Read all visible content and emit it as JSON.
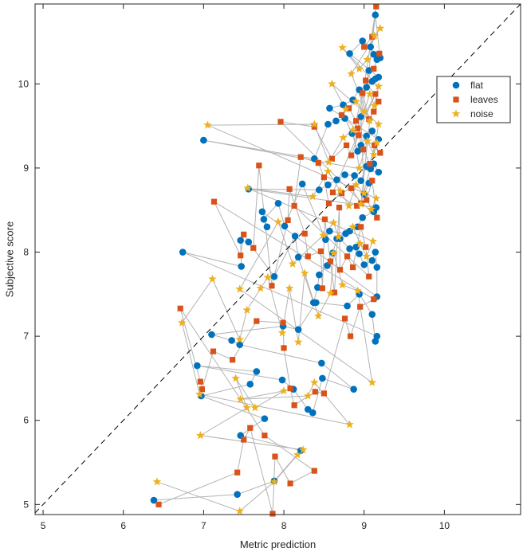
{
  "chart_data": {
    "type": "scatter",
    "title": "",
    "xlabel": "Metric prediction",
    "ylabel": "Subjective score",
    "xlim": [
      4.9,
      10.95
    ],
    "ylim": [
      4.88,
      10.95
    ],
    "xticks": [
      "5",
      "6",
      "7",
      "8",
      "9",
      "10"
    ],
    "yticks": [
      "5",
      "6",
      "7",
      "8",
      "9",
      "10"
    ],
    "grid": false,
    "legend_position": "top-right",
    "reference_line": "y = x (dashed)",
    "connector_color": "#b3b3b3",
    "series": [
      {
        "name": "flat",
        "marker": "circle",
        "color": "#0072bd",
        "points": [
          [
            6.38,
            5.05
          ],
          [
            7.42,
            5.12
          ],
          [
            7.88,
            5.28
          ],
          [
            8.21,
            5.64
          ],
          [
            7.46,
            5.82
          ],
          [
            7.76,
            6.02
          ],
          [
            6.97,
            6.29
          ],
          [
            7.58,
            6.43
          ],
          [
            7.66,
            6.58
          ],
          [
            6.92,
            6.65
          ],
          [
            7.98,
            6.48
          ],
          [
            8.12,
            6.37
          ],
          [
            8.3,
            6.13
          ],
          [
            8.36,
            6.09
          ],
          [
            8.48,
            6.5
          ],
          [
            8.87,
            6.37
          ],
          [
            8.47,
            6.68
          ],
          [
            7.45,
            6.9
          ],
          [
            7.35,
            6.95
          ],
          [
            7.1,
            7.02
          ],
          [
            7.99,
            7.12
          ],
          [
            8.18,
            7.08
          ],
          [
            8.4,
            7.4
          ],
          [
            8.79,
            7.36
          ],
          [
            8.94,
            7.5
          ],
          [
            9.1,
            7.26
          ],
          [
            9.14,
            6.94
          ],
          [
            9.16,
            7.0
          ],
          [
            6.74,
            8.0
          ],
          [
            7.47,
            7.83
          ],
          [
            7.46,
            8.14
          ],
          [
            7.56,
            8.12
          ],
          [
            7.88,
            7.71
          ],
          [
            8.14,
            8.19
          ],
          [
            8.18,
            7.94
          ],
          [
            8.37,
            7.4
          ],
          [
            8.42,
            7.58
          ],
          [
            8.44,
            7.73
          ],
          [
            8.54,
            7.84
          ],
          [
            8.61,
            7.99
          ],
          [
            8.66,
            8.16
          ],
          [
            8.7,
            8.16
          ],
          [
            8.82,
            8.04
          ],
          [
            8.9,
            8.06
          ],
          [
            8.94,
            7.98
          ],
          [
            9.0,
            7.85
          ],
          [
            9.1,
            7.9
          ],
          [
            9.14,
            8.0
          ],
          [
            9.16,
            7.82
          ],
          [
            9.16,
            7.47
          ],
          [
            7.73,
            8.48
          ],
          [
            7.79,
            8.3
          ],
          [
            7.75,
            8.39
          ],
          [
            7.93,
            8.58
          ],
          [
            8.01,
            8.31
          ],
          [
            8.23,
            8.81
          ],
          [
            8.52,
            8.15
          ],
          [
            8.57,
            8.25
          ],
          [
            8.77,
            8.22
          ],
          [
            8.82,
            8.25
          ],
          [
            8.92,
            8.3
          ],
          [
            8.98,
            8.41
          ],
          [
            9.12,
            8.48
          ],
          [
            9.15,
            8.53
          ],
          [
            7.56,
            8.75
          ],
          [
            8.44,
            8.74
          ],
          [
            8.55,
            8.8
          ],
          [
            8.66,
            8.86
          ],
          [
            8.76,
            8.92
          ],
          [
            8.88,
            8.91
          ],
          [
            8.96,
            8.85
          ],
          [
            9.03,
            9.02
          ],
          [
            9.08,
            8.99
          ],
          [
            9.12,
            9.05
          ],
          [
            9.18,
            8.95
          ],
          [
            7.0,
            9.33
          ],
          [
            8.38,
            9.11
          ],
          [
            8.55,
            9.52
          ],
          [
            8.65,
            9.56
          ],
          [
            8.76,
            9.59
          ],
          [
            8.85,
            9.41
          ],
          [
            8.92,
            9.2
          ],
          [
            8.96,
            9.27
          ],
          [
            9.03,
            9.38
          ],
          [
            9.1,
            9.44
          ],
          [
            9.18,
            9.34
          ],
          [
            8.57,
            9.71
          ],
          [
            8.74,
            9.75
          ],
          [
            8.86,
            9.81
          ],
          [
            8.94,
            9.93
          ],
          [
            9.03,
            9.96
          ],
          [
            9.1,
            10.03
          ],
          [
            9.14,
            10.06
          ],
          [
            9.18,
            10.08
          ],
          [
            8.82,
            10.36
          ],
          [
            8.98,
            10.51
          ],
          [
            9.08,
            10.44
          ],
          [
            9.12,
            10.35
          ],
          [
            9.16,
            10.29
          ],
          [
            9.2,
            10.31
          ],
          [
            9.14,
            10.82
          ],
          [
            9.06,
            10.16
          ],
          [
            8.96,
            9.61
          ],
          [
            9.0,
            8.69
          ],
          [
            9.06,
            8.82
          ]
        ]
      },
      {
        "name": "leaves",
        "marker": "square",
        "color": "#d95319",
        "points": [
          [
            6.44,
            5.0
          ],
          [
            7.42,
            5.38
          ],
          [
            7.5,
            5.77
          ],
          [
            7.58,
            5.91
          ],
          [
            7.86,
            4.89
          ],
          [
            7.89,
            5.57
          ],
          [
            8.08,
            5.25
          ],
          [
            8.38,
            5.4
          ],
          [
            7.76,
            5.82
          ],
          [
            6.71,
            7.33
          ],
          [
            6.96,
            6.46
          ],
          [
            6.98,
            6.37
          ],
          [
            7.12,
            6.82
          ],
          [
            7.36,
            6.72
          ],
          [
            7.66,
            7.18
          ],
          [
            7.99,
            7.16
          ],
          [
            8.0,
            6.86
          ],
          [
            8.08,
            6.38
          ],
          [
            8.13,
            6.18
          ],
          [
            8.39,
            6.34
          ],
          [
            8.5,
            6.32
          ],
          [
            8.76,
            7.21
          ],
          [
            8.83,
            7.0
          ],
          [
            8.95,
            7.35
          ],
          [
            9.12,
            7.44
          ],
          [
            7.13,
            8.6
          ],
          [
            7.46,
            7.96
          ],
          [
            7.5,
            8.21
          ],
          [
            7.62,
            8.05
          ],
          [
            7.69,
            9.03
          ],
          [
            7.85,
            7.6
          ],
          [
            8.05,
            8.38
          ],
          [
            8.07,
            8.75
          ],
          [
            8.26,
            8.22
          ],
          [
            8.3,
            7.95
          ],
          [
            8.46,
            8.01
          ],
          [
            8.48,
            7.57
          ],
          [
            8.51,
            8.39
          ],
          [
            8.58,
            7.89
          ],
          [
            8.63,
            7.52
          ],
          [
            8.69,
            8.53
          ],
          [
            8.7,
            7.79
          ],
          [
            8.79,
            7.95
          ],
          [
            8.86,
            7.82
          ],
          [
            8.96,
            8.3
          ],
          [
            9.02,
            8.06
          ],
          [
            9.06,
            7.71
          ],
          [
            8.13,
            8.55
          ],
          [
            8.21,
            9.13
          ],
          [
            8.43,
            9.06
          ],
          [
            8.5,
            8.89
          ],
          [
            8.56,
            8.58
          ],
          [
            8.72,
            8.7
          ],
          [
            8.84,
            8.76
          ],
          [
            8.96,
            8.58
          ],
          [
            9.03,
            8.62
          ],
          [
            9.1,
            8.85
          ],
          [
            9.16,
            8.41
          ],
          [
            7.96,
            9.55
          ],
          [
            8.38,
            9.49
          ],
          [
            8.6,
            9.11
          ],
          [
            8.78,
            9.27
          ],
          [
            8.84,
            9.15
          ],
          [
            8.93,
            9.39
          ],
          [
            8.99,
            9.22
          ],
          [
            9.07,
            9.05
          ],
          [
            9.13,
            9.27
          ],
          [
            9.2,
            9.18
          ],
          [
            8.72,
            9.63
          ],
          [
            8.81,
            9.71
          ],
          [
            8.9,
            9.56
          ],
          [
            8.98,
            9.89
          ],
          [
            9.06,
            9.58
          ],
          [
            9.12,
            9.67
          ],
          [
            9.18,
            9.79
          ],
          [
            9.02,
            10.04
          ],
          [
            9.12,
            10.18
          ],
          [
            9.19,
            10.36
          ],
          [
            9.0,
            10.44
          ],
          [
            9.1,
            10.56
          ],
          [
            9.15,
            10.92
          ],
          [
            8.92,
            9.47
          ],
          [
            9.14,
            9.88
          ],
          [
            8.61,
            8.71
          ],
          [
            8.91,
            8.55
          ]
        ]
      },
      {
        "name": "noise",
        "marker": "star",
        "color": "#edb120",
        "points": [
          [
            6.42,
            5.27
          ],
          [
            7.45,
            4.92
          ],
          [
            7.88,
            5.27
          ],
          [
            8.17,
            5.59
          ],
          [
            8.24,
            5.65
          ],
          [
            6.96,
            5.82
          ],
          [
            7.54,
            6.15
          ],
          [
            7.4,
            6.5
          ],
          [
            7.64,
            6.15
          ],
          [
            8.0,
            6.35
          ],
          [
            7.46,
            6.25
          ],
          [
            8.3,
            6.29
          ],
          [
            8.38,
            6.45
          ],
          [
            8.82,
            5.95
          ],
          [
            6.95,
            6.31
          ],
          [
            6.73,
            7.16
          ],
          [
            7.11,
            7.68
          ],
          [
            7.45,
            6.96
          ],
          [
            7.54,
            7.31
          ],
          [
            7.71,
            7.57
          ],
          [
            7.8,
            7.7
          ],
          [
            7.98,
            7.04
          ],
          [
            8.07,
            7.57
          ],
          [
            8.18,
            6.93
          ],
          [
            8.26,
            7.75
          ],
          [
            8.43,
            7.24
          ],
          [
            8.58,
            7.51
          ],
          [
            8.62,
            7.99
          ],
          [
            8.73,
            7.61
          ],
          [
            8.92,
            7.54
          ],
          [
            9.1,
            6.45
          ],
          [
            7.45,
            7.56
          ],
          [
            7.93,
            8.36
          ],
          [
            8.11,
            7.86
          ],
          [
            8.49,
            8.2
          ],
          [
            8.62,
            8.35
          ],
          [
            8.68,
            8.18
          ],
          [
            8.86,
            8.3
          ],
          [
            8.95,
            8.1
          ],
          [
            9.03,
            7.95
          ],
          [
            9.11,
            8.13
          ],
          [
            7.55,
            8.76
          ],
          [
            8.36,
            8.66
          ],
          [
            8.55,
            8.96
          ],
          [
            8.7,
            8.73
          ],
          [
            8.81,
            8.55
          ],
          [
            8.9,
            8.8
          ],
          [
            9.0,
            8.7
          ],
          [
            9.09,
            8.51
          ],
          [
            9.15,
            8.64
          ],
          [
            7.05,
            9.51
          ],
          [
            8.38,
            9.52
          ],
          [
            8.56,
            9.07
          ],
          [
            8.74,
            9.36
          ],
          [
            8.86,
            9.45
          ],
          [
            8.94,
            9.0
          ],
          [
            9.04,
            9.32
          ],
          [
            9.12,
            9.16
          ],
          [
            9.18,
            9.52
          ],
          [
            8.6,
            10.0
          ],
          [
            8.77,
            9.7
          ],
          [
            8.9,
            9.79
          ],
          [
            9.0,
            9.67
          ],
          [
            9.07,
            9.88
          ],
          [
            9.13,
            9.74
          ],
          [
            9.18,
            9.97
          ],
          [
            8.73,
            10.43
          ],
          [
            8.94,
            10.18
          ],
          [
            9.04,
            10.29
          ],
          [
            9.13,
            10.57
          ],
          [
            9.2,
            10.66
          ],
          [
            8.84,
            10.12
          ],
          [
            9.07,
            9.56
          ],
          [
            8.96,
            8.57
          ],
          [
            9.16,
            9.3
          ]
        ]
      }
    ]
  }
}
